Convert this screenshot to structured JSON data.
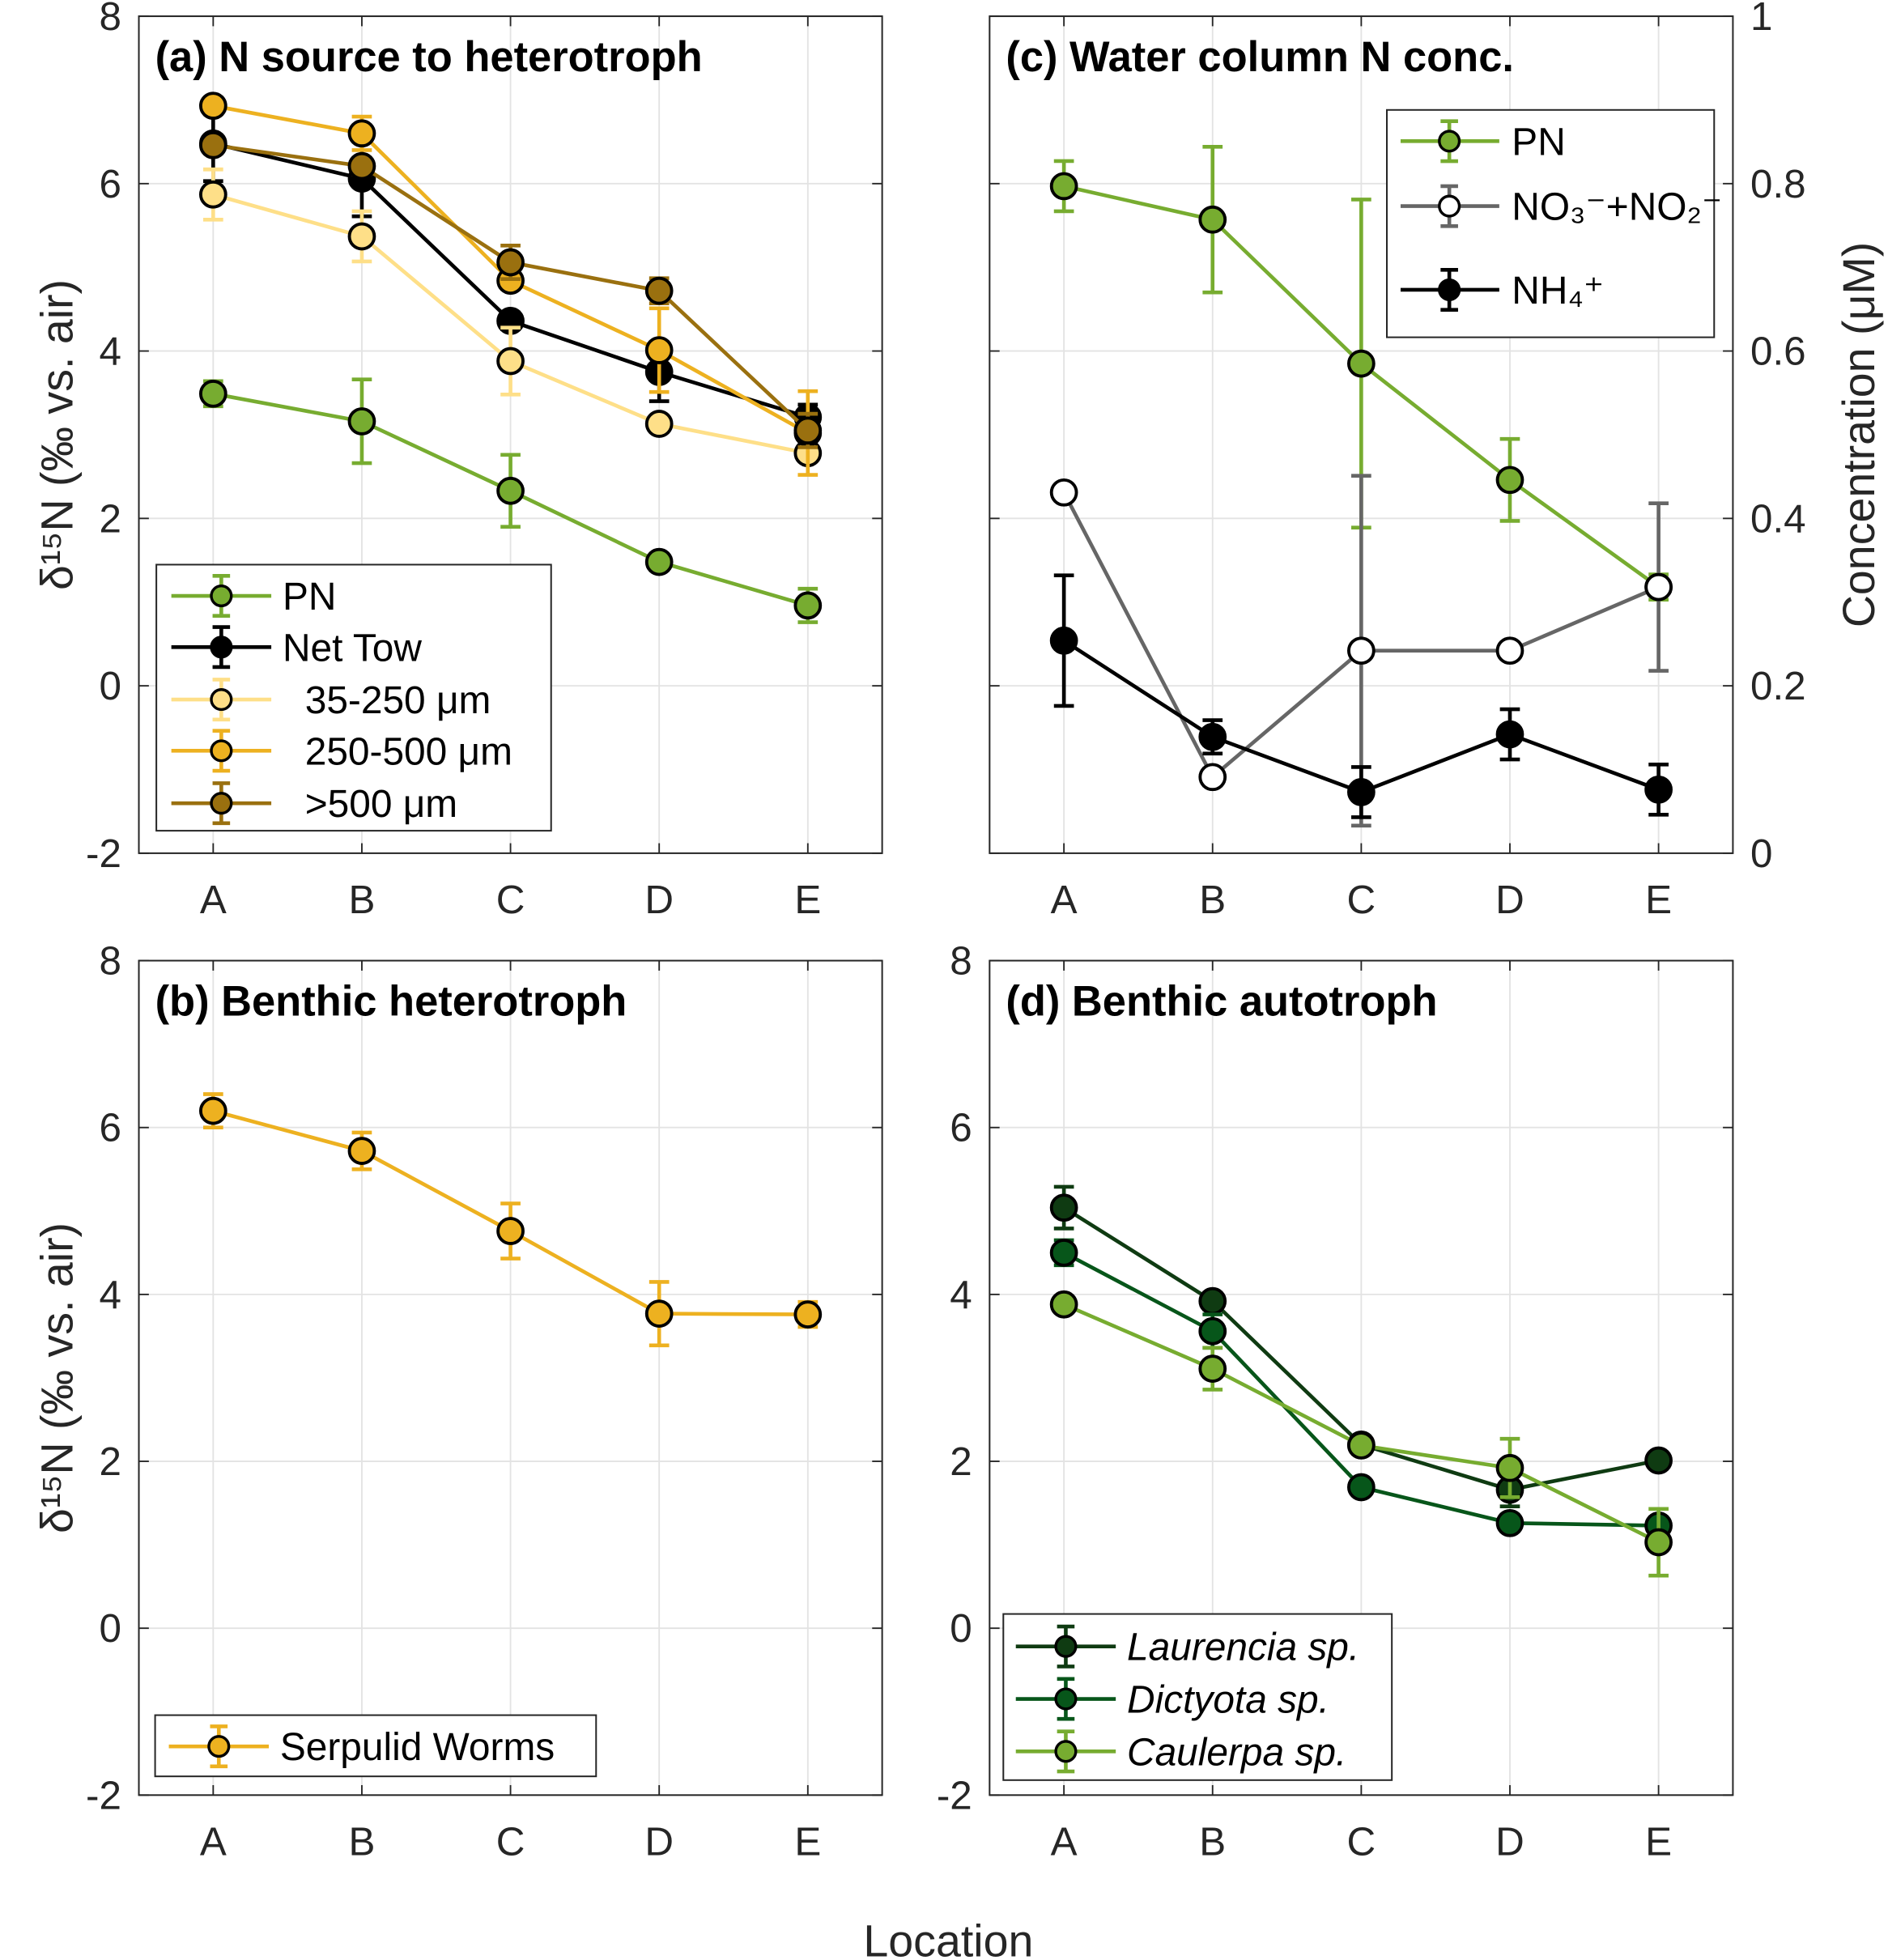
{
  "figure": {
    "xlabel": "Location",
    "ylabel_left": "δ¹⁵N (‰ vs. air)",
    "ylabel_right": "Concentration (μM)"
  },
  "chart_data": [
    {
      "type": "line",
      "panel": "a",
      "title": "(a) N source to heterotroph",
      "categories": [
        "A",
        "B",
        "C",
        "D",
        "E"
      ],
      "ylim": [
        -2,
        8
      ],
      "yticks": [
        "-2",
        "0",
        "2",
        "4",
        "6",
        "8"
      ],
      "ylabel": "δ¹⁵N (‰ vs. air)",
      "grid": true,
      "legend_position": "bottom-left",
      "error_bars": true,
      "series": [
        {
          "name": "PN",
          "color": "#77ac30",
          "fill": "#77ac30",
          "values": [
            3.49,
            3.16,
            2.33,
            1.48,
            0.96
          ],
          "errors": [
            0.15,
            0.5,
            0.43,
            0.1,
            0.2
          ]
        },
        {
          "name": "Net Tow",
          "color": "#000000",
          "fill": "#000000",
          "values": [
            6.48,
            6.06,
            4.36,
            3.75,
            3.21
          ],
          "errors": [
            0.45,
            0.45,
            0.1,
            0.35,
            0.15
          ]
        },
        {
          "name": "35-250 μm",
          "color": "#fedf88",
          "fill": "#fedf88",
          "values": [
            5.87,
            5.37,
            3.88,
            3.13,
            2.78
          ],
          "errors": [
            0.3,
            0.3,
            0.4,
            0.1,
            0.1
          ]
        },
        {
          "name": "250-500 μm",
          "color": "#edb120",
          "fill": "#edb120",
          "values": [
            6.93,
            6.6,
            4.84,
            4.01,
            3.02
          ],
          "errors": [
            0.1,
            0.2,
            0.1,
            0.5,
            0.5
          ]
        },
        {
          "name": ">500 μm",
          "color": "#9a700f",
          "fill": "#9a700f",
          "values": [
            6.46,
            6.21,
            5.06,
            4.72,
            3.05
          ],
          "errors": [
            0.1,
            0.1,
            0.2,
            0.15,
            0.2
          ]
        }
      ]
    },
    {
      "type": "line",
      "panel": "c",
      "title": "(c) Water column N conc.",
      "categories": [
        "A",
        "B",
        "C",
        "D",
        "E"
      ],
      "ylim": [
        0,
        1
      ],
      "yticks": [
        "0",
        "0.2",
        "0.4",
        "0.6",
        "0.8",
        "1"
      ],
      "ylabel": "Concentration (μM)",
      "y_axis_side": "right",
      "grid": true,
      "legend_position": "top-right",
      "error_bars": true,
      "series": [
        {
          "name": "PN",
          "color": "#77ac30",
          "fill": "#77ac30",
          "values": [
            0.797,
            0.757,
            0.585,
            0.446,
            0.318
          ],
          "errors": [
            0.03,
            0.087,
            0.196,
            0.049,
            0.015
          ]
        },
        {
          "name": "NO₃⁻+NO₂⁻",
          "color": "#666666",
          "fill": "#ffffff",
          "values": [
            0.431,
            0.091,
            0.242,
            0.242,
            0.318
          ],
          "errors": [
            0.003,
            0.01,
            0.209,
            0,
            0.1
          ]
        },
        {
          "name": "NH₄⁺",
          "color": "#000000",
          "fill": "#000000",
          "values": [
            0.254,
            0.139,
            0.073,
            0.142,
            0.076
          ],
          "errors": [
            0.078,
            0.02,
            0.03,
            0.03,
            0.03
          ]
        }
      ]
    },
    {
      "type": "line",
      "panel": "b",
      "title": "(b) Benthic heterotroph",
      "categories": [
        "A",
        "B",
        "C",
        "D",
        "E"
      ],
      "ylim": [
        -2,
        8
      ],
      "yticks": [
        "-2",
        "0",
        "2",
        "4",
        "6",
        "8"
      ],
      "ylabel": "δ¹⁵N (‰ vs. air)",
      "grid": true,
      "legend_position": "bottom-left",
      "error_bars": true,
      "series": [
        {
          "name": "Serpulid Worms",
          "color": "#edb120",
          "fill": "#edb120",
          "values": [
            6.2,
            5.72,
            4.76,
            3.77,
            3.76
          ],
          "errors": [
            0.2,
            0.22,
            0.33,
            0.38,
            0.15
          ]
        }
      ]
    },
    {
      "type": "line",
      "panel": "d",
      "title": "(d) Benthic autotroph",
      "categories": [
        "A",
        "B",
        "C",
        "D",
        "E"
      ],
      "ylim": [
        -2,
        8
      ],
      "yticks": [
        "-2",
        "0",
        "2",
        "4",
        "6",
        "8"
      ],
      "grid": true,
      "legend_position": "bottom-left",
      "error_bars": true,
      "series": [
        {
          "name": "Laurencia sp.",
          "color": "#0f3b12",
          "fill": "#0f3b12",
          "values": [
            5.04,
            3.92,
            2.2,
            1.66,
            2.01
          ],
          "errors": [
            0.25,
            0.1,
            0.1,
            0.2,
            0.05
          ]
        },
        {
          "name": "Dictyota sp.",
          "color": "#07561a",
          "fill": "#07561a",
          "values": [
            4.5,
            3.56,
            1.69,
            1.26,
            1.23
          ],
          "errors": [
            0.15,
            0.2,
            0.05,
            0.1,
            0.1
          ]
        },
        {
          "name": "Caulerpa sp.",
          "color": "#77ac30",
          "fill": "#77ac30",
          "values": [
            3.88,
            3.11,
            2.19,
            1.92,
            1.03
          ],
          "errors": [
            0.05,
            0.25,
            0.1,
            0.35,
            0.4
          ]
        }
      ]
    }
  ]
}
